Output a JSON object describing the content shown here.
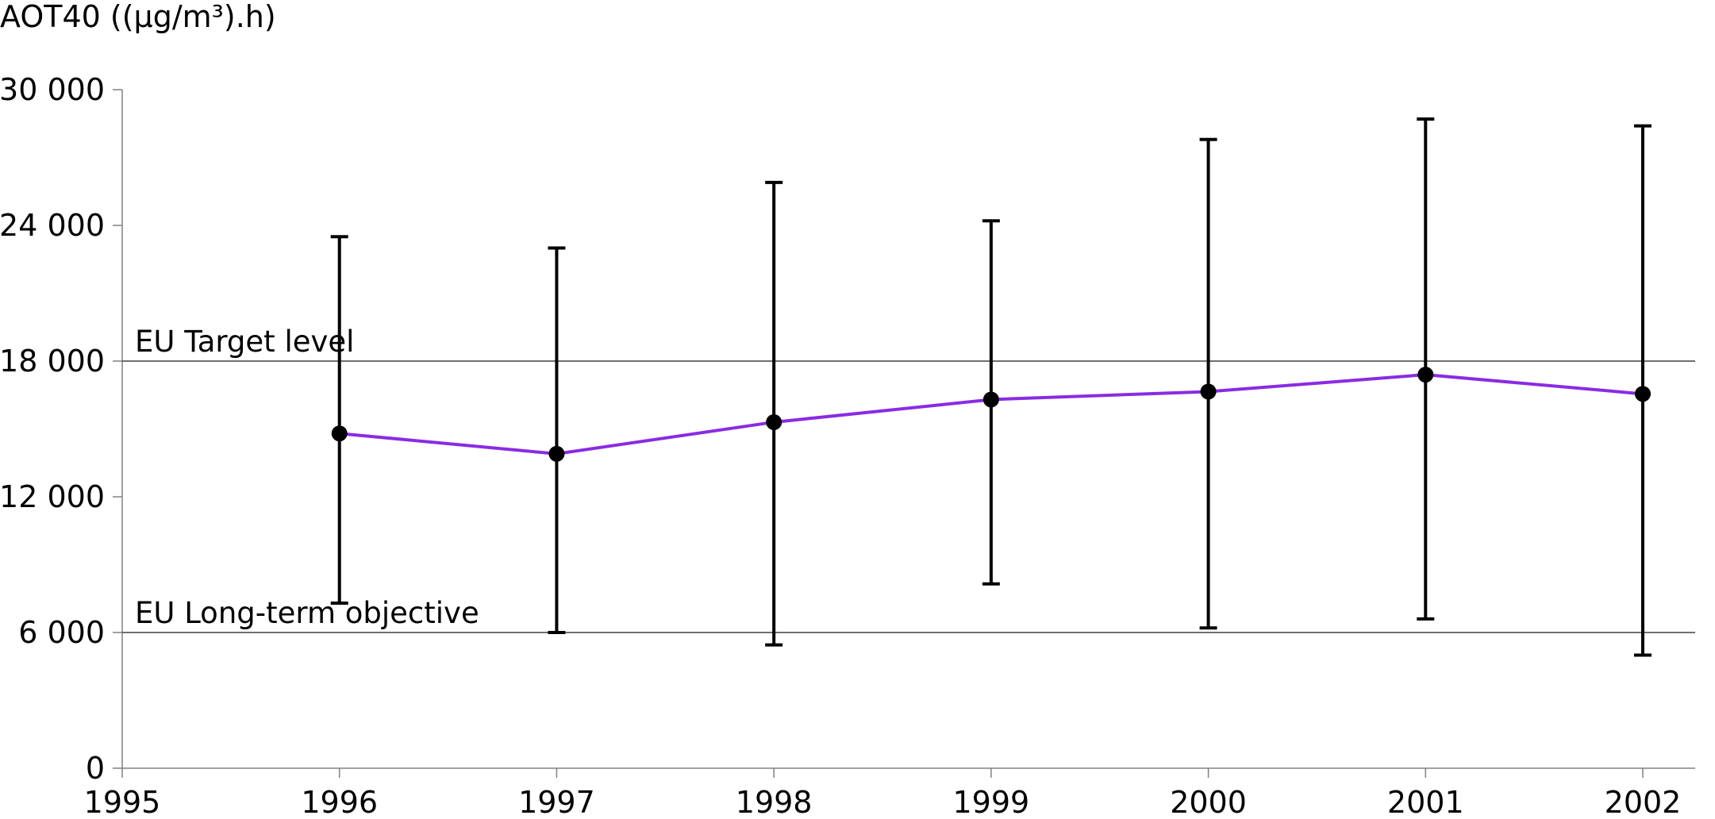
{
  "chart_data": {
    "type": "line",
    "title": "",
    "ylabel": "AOT40  ((µg/m³).h)",
    "xlabel": "",
    "xlim": [
      1995,
      2002
    ],
    "ylim": [
      0,
      30000
    ],
    "x_ticks": [
      1995,
      1996,
      1997,
      1998,
      1999,
      2000,
      2001,
      2002
    ],
    "x_tick_labels": [
      "1995",
      "1996",
      "1997",
      "1998",
      "1999",
      "2000",
      "2001",
      "2002"
    ],
    "y_ticks": [
      0,
      6000,
      12000,
      18000,
      24000,
      30000
    ],
    "y_tick_labels": [
      "0",
      "6 000",
      "12 000",
      "18 000",
      "24 000",
      "30 000"
    ],
    "grid": false,
    "series": [
      {
        "color": "#8a2be2",
        "x": [
          1996,
          1997,
          1998,
          1999,
          2000,
          2001,
          2002
        ],
        "y": [
          14800,
          13900,
          15300,
          16300,
          16650,
          17400,
          16550
        ],
        "error_low": [
          7300,
          6000,
          5450,
          8150,
          6200,
          6600,
          5000
        ],
        "error_high": [
          23500,
          23000,
          25900,
          24200,
          27800,
          28700,
          28400
        ]
      }
    ],
    "reference_lines": [
      {
        "label": "EU Target level",
        "y": 18000
      },
      {
        "label": "EU Long-term objective",
        "y": 6000
      }
    ]
  }
}
